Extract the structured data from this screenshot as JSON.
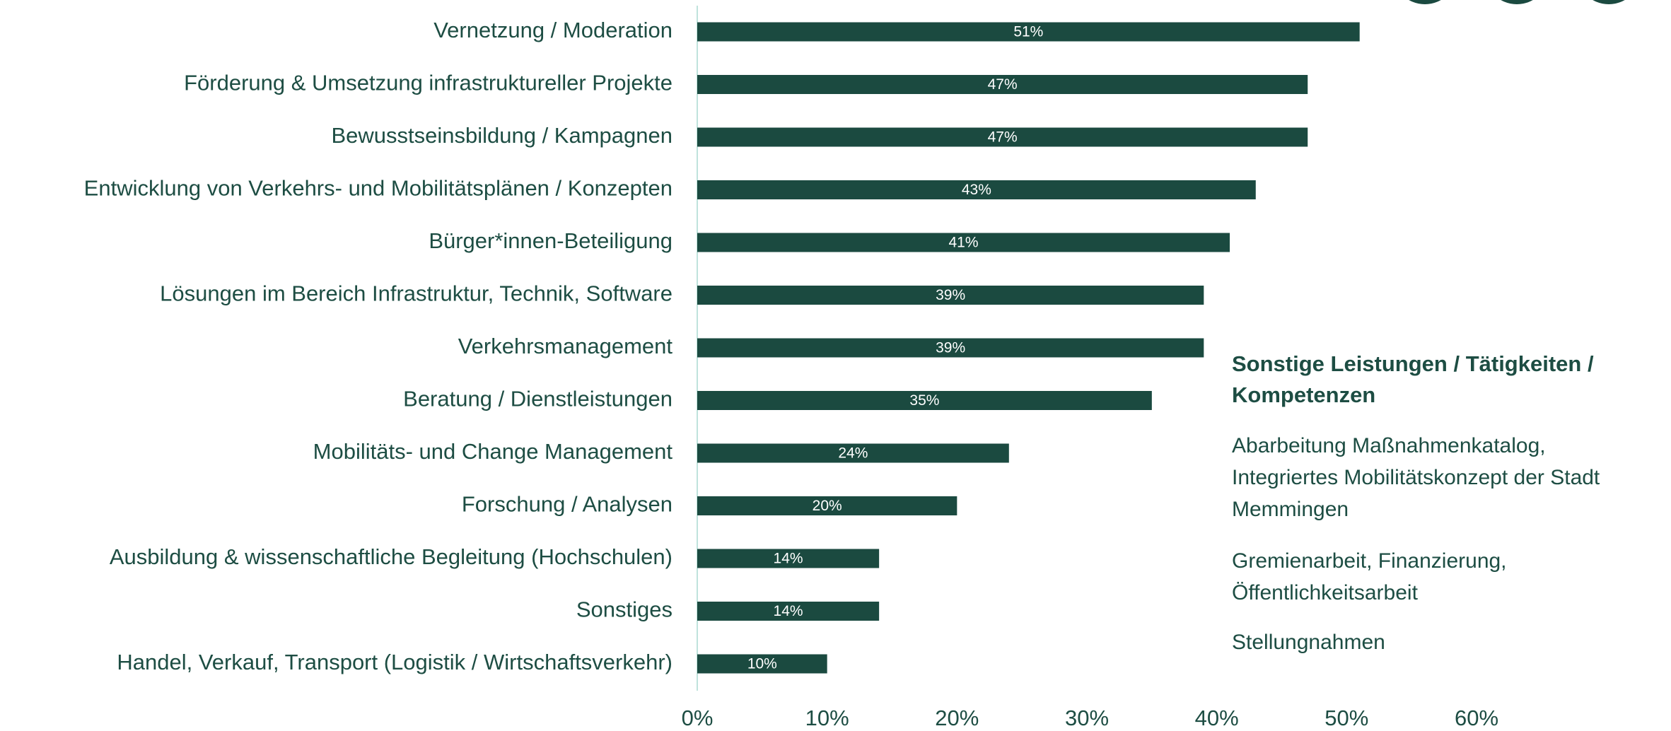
{
  "chart_data": {
    "type": "barh",
    "categories": [
      "Vernetzung / Moderation",
      "Förderung & Umsetzung infrastruktureller Projekte",
      "Bewusstseinsbildung / Kampagnen",
      "Entwicklung von Verkehrs- und Mobilitätsplänen / Konzepten",
      "Bürger*innen-Beteiligung",
      "Lösungen im Bereich Infrastruktur, Technik, Software",
      "Verkehrsmanagement",
      "Beratung / Dienstleistungen",
      "Mobilitäts- und Change Management",
      "Forschung / Analysen",
      "Ausbildung & wissenschaftliche Begleitung (Hochschulen)",
      "Sonstiges",
      "Handel, Verkauf, Transport (Logistik / Wirtschaftsverkehr)"
    ],
    "values": [
      51,
      47,
      47,
      43,
      41,
      39,
      39,
      35,
      24,
      20,
      14,
      14,
      10
    ],
    "value_labels": [
      "51%",
      "47%",
      "47%",
      "43%",
      "41%",
      "39%",
      "39%",
      "35%",
      "24%",
      "20%",
      "14%",
      "14%",
      "10%"
    ],
    "color": "#1b4a40",
    "xlim": [
      0,
      60
    ],
    "xticks": [
      {
        "value": 0,
        "label": "0%"
      },
      {
        "value": 10,
        "label": "10%"
      },
      {
        "value": 20,
        "label": "20%"
      },
      {
        "value": 30,
        "label": "30%"
      },
      {
        "value": 40,
        "label": "40%"
      },
      {
        "value": 50,
        "label": "50%"
      },
      {
        "value": 60,
        "label": "60%"
      }
    ],
    "side_note": {
      "title": [
        "Sonstige Leistungen / Tätigkeiten /",
        "Kompetenzen"
      ],
      "items": [
        [
          "Abarbeitung Maßnahmenkatalog,",
          "Integriertes Mobilitätskonzept der Stadt",
          "Memmingen"
        ],
        [
          "Gremienarbeit, Finanzierung,",
          "Öffentlichkeitsarbeit"
        ],
        [
          "Stellungnahmen"
        ]
      ]
    }
  }
}
